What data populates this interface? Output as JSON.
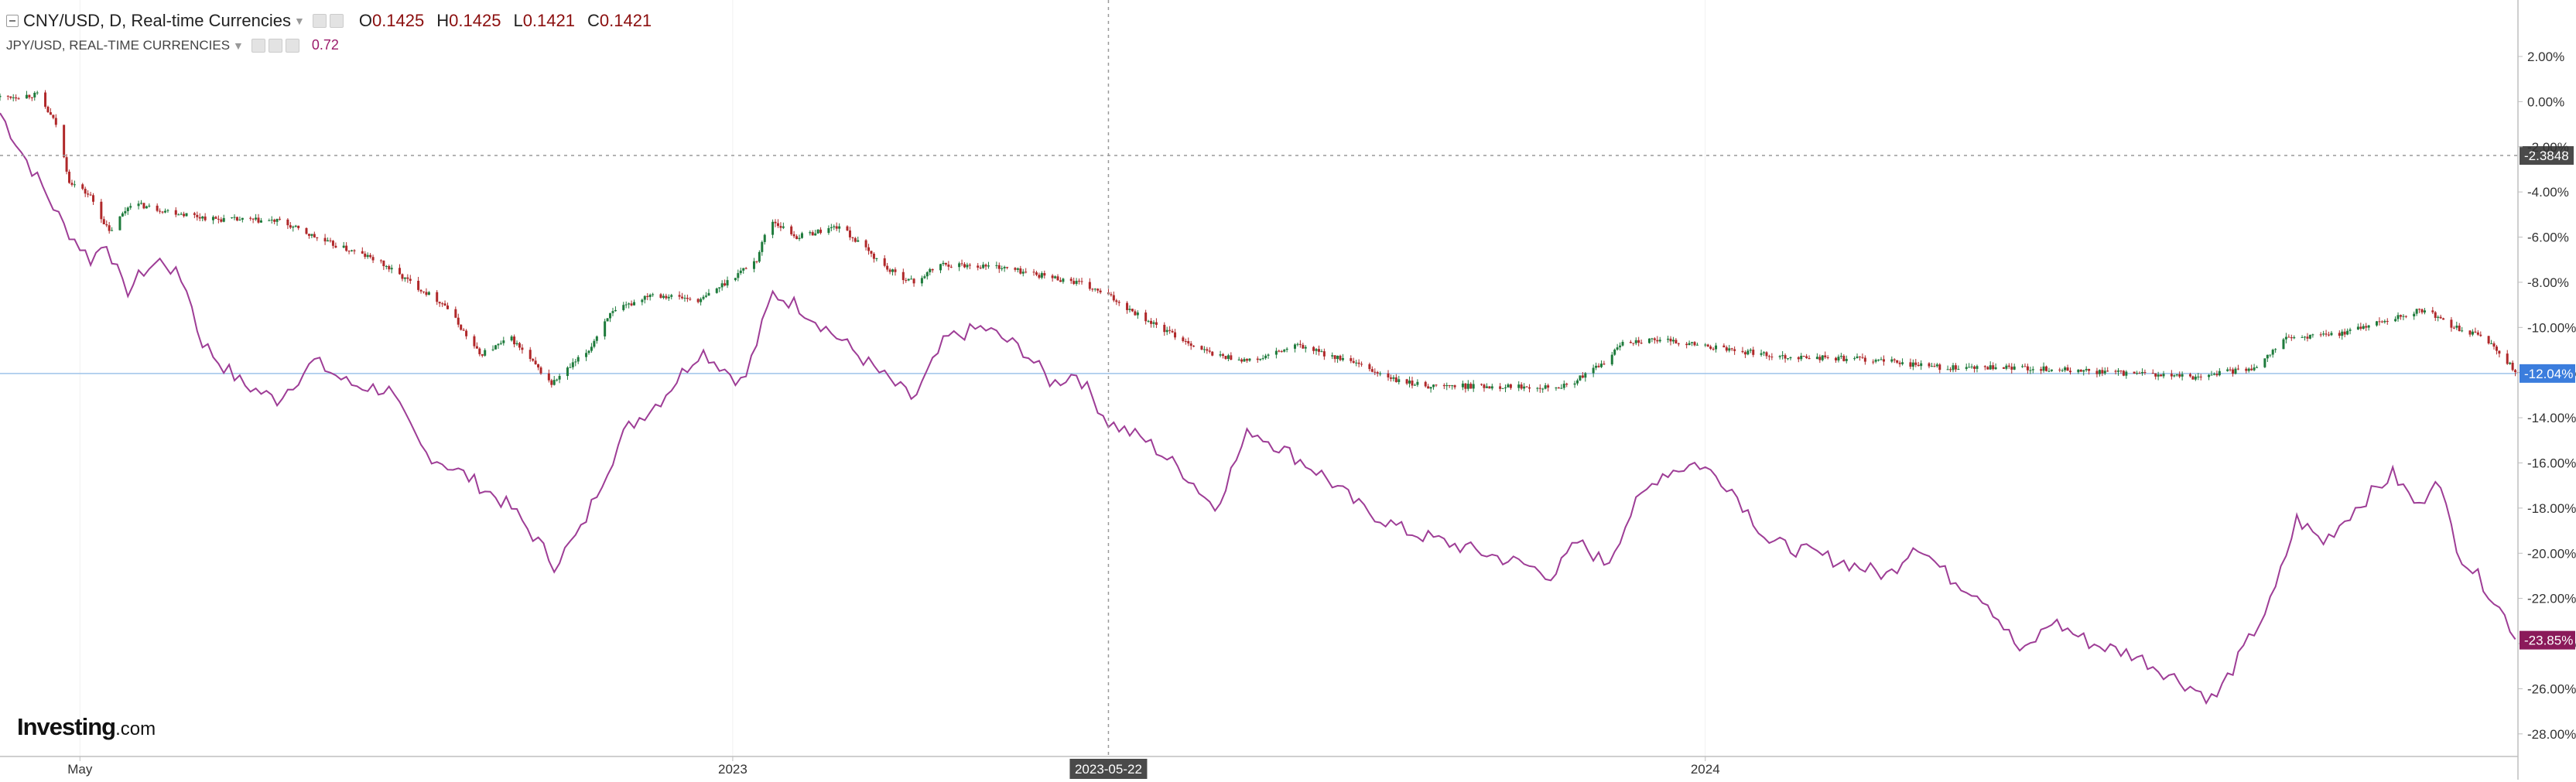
{
  "header": {
    "symbol": "CNY/USD, D, Real-time Currencies",
    "open_label": "O",
    "open": "0.1425",
    "high_label": "H",
    "high": "0.1425",
    "low_label": "L",
    "low": "0.1421",
    "close_label": "C",
    "close": "0.1421"
  },
  "overlay": {
    "symbol": "JPY/USD, REAL-TIME CURRENCIES",
    "value": "0.72"
  },
  "brand": {
    "name": "Investing",
    "domain": ".com"
  },
  "chart_data": {
    "type": "line",
    "y_axis": {
      "unit": "%",
      "range": [
        -29,
        4.5
      ],
      "ticks": [
        "2.00%",
        "0.00%",
        "-2.00%",
        "-4.00%",
        "-6.00%",
        "-8.00%",
        "-10.00%",
        "-12.00%",
        "-14.00%",
        "-16.00%",
        "-18.00%",
        "-20.00%",
        "-22.00%",
        "-24.00%",
        "-26.00%",
        "-28.00%"
      ],
      "tick_values": [
        2,
        0,
        -2,
        -4,
        -6,
        -8,
        -10,
        -12,
        -14,
        -16,
        -18,
        -20,
        -22,
        -24,
        -26,
        -28
      ]
    },
    "x_axis": {
      "range": [
        "2022-04-01",
        "2024-11-01"
      ],
      "labels": [
        {
          "text": "May",
          "date": "2022-05-01"
        },
        {
          "text": "2023",
          "date": "2023-01-01"
        },
        {
          "text": "2024",
          "date": "2024-01-01"
        }
      ]
    },
    "crosshair": {
      "date_label": "2023-05-22",
      "date": "2023-05-22",
      "value_label": "-2.3848",
      "value": -2.3848
    },
    "price_labels": [
      {
        "text": "-12.04%",
        "value": -12.04,
        "color": "#3b7ddd"
      },
      {
        "text": "-23.85%",
        "value": -23.85,
        "color": "#8b1a5a"
      }
    ],
    "series": [
      {
        "name": "CNY/USD",
        "style": "candlestick",
        "up_color": "#1e7b3c",
        "down_color": "#b0282a",
        "points": [
          {
            "x": "2022-04-01",
            "y": 0.2
          },
          {
            "x": "2022-04-15",
            "y": 0.3
          },
          {
            "x": "2022-04-22",
            "y": -1.0
          },
          {
            "x": "2022-04-27",
            "y": -3.5
          },
          {
            "x": "2022-05-05",
            "y": -4.2
          },
          {
            "x": "2022-05-12",
            "y": -5.8
          },
          {
            "x": "2022-05-20",
            "y": -4.5
          },
          {
            "x": "2022-06-01",
            "y": -4.8
          },
          {
            "x": "2022-06-20",
            "y": -5.2
          },
          {
            "x": "2022-07-15",
            "y": -5.3
          },
          {
            "x": "2022-08-01",
            "y": -6.2
          },
          {
            "x": "2022-08-20",
            "y": -7.0
          },
          {
            "x": "2022-09-15",
            "y": -9.0
          },
          {
            "x": "2022-09-28",
            "y": -11.2
          },
          {
            "x": "2022-10-10",
            "y": -10.5
          },
          {
            "x": "2022-10-25",
            "y": -12.5
          },
          {
            "x": "2022-11-08",
            "y": -11.0
          },
          {
            "x": "2022-11-15",
            "y": -9.5
          },
          {
            "x": "2022-12-01",
            "y": -8.5
          },
          {
            "x": "2022-12-20",
            "y": -8.8
          },
          {
            "x": "2023-01-10",
            "y": -7.0
          },
          {
            "x": "2023-01-15",
            "y": -5.2
          },
          {
            "x": "2023-01-25",
            "y": -6.0
          },
          {
            "x": "2023-02-10",
            "y": -5.5
          },
          {
            "x": "2023-03-01",
            "y": -7.5
          },
          {
            "x": "2023-03-10",
            "y": -8.0
          },
          {
            "x": "2023-03-20",
            "y": -7.2
          },
          {
            "x": "2023-04-10",
            "y": -7.3
          },
          {
            "x": "2023-05-10",
            "y": -8.0
          },
          {
            "x": "2023-05-22",
            "y": -8.6
          },
          {
            "x": "2023-06-10",
            "y": -10.0
          },
          {
            "x": "2023-06-30",
            "y": -11.2
          },
          {
            "x": "2023-07-15",
            "y": -11.5
          },
          {
            "x": "2023-08-01",
            "y": -10.8
          },
          {
            "x": "2023-08-20",
            "y": -11.5
          },
          {
            "x": "2023-09-08",
            "y": -12.4
          },
          {
            "x": "2023-09-20",
            "y": -12.6
          },
          {
            "x": "2023-10-20",
            "y": -12.6
          },
          {
            "x": "2023-11-10",
            "y": -12.6
          },
          {
            "x": "2023-11-25",
            "y": -11.5
          },
          {
            "x": "2023-12-01",
            "y": -10.6
          },
          {
            "x": "2023-12-20",
            "y": -10.6
          },
          {
            "x": "2024-01-10",
            "y": -11.0
          },
          {
            "x": "2024-02-01",
            "y": -11.3
          },
          {
            "x": "2024-03-01",
            "y": -11.4
          },
          {
            "x": "2024-04-01",
            "y": -11.8
          },
          {
            "x": "2024-05-01",
            "y": -11.8
          },
          {
            "x": "2024-06-01",
            "y": -12.0
          },
          {
            "x": "2024-07-01",
            "y": -12.2
          },
          {
            "x": "2024-07-25",
            "y": -11.8
          },
          {
            "x": "2024-08-05",
            "y": -10.5
          },
          {
            "x": "2024-08-25",
            "y": -10.3
          },
          {
            "x": "2024-09-15",
            "y": -9.6
          },
          {
            "x": "2024-09-27",
            "y": -9.2
          },
          {
            "x": "2024-10-08",
            "y": -10.0
          },
          {
            "x": "2024-10-20",
            "y": -10.5
          },
          {
            "x": "2024-10-28",
            "y": -11.5
          },
          {
            "x": "2024-11-01",
            "y": -12.04
          }
        ]
      },
      {
        "name": "JPY/USD",
        "style": "line",
        "color": "#9e3d96",
        "points": [
          {
            "x": "2022-04-01",
            "y": -0.5
          },
          {
            "x": "2022-04-08",
            "y": -2.0
          },
          {
            "x": "2022-04-18",
            "y": -4.0
          },
          {
            "x": "2022-04-25",
            "y": -5.5
          },
          {
            "x": "2022-05-05",
            "y": -7.0
          },
          {
            "x": "2022-05-11",
            "y": -6.2
          },
          {
            "x": "2022-05-18",
            "y": -8.5
          },
          {
            "x": "2022-05-25",
            "y": -7.5
          },
          {
            "x": "2022-06-01",
            "y": -7.0
          },
          {
            "x": "2022-06-10",
            "y": -8.2
          },
          {
            "x": "2022-06-15",
            "y": -10.5
          },
          {
            "x": "2022-06-22",
            "y": -11.5
          },
          {
            "x": "2022-07-01",
            "y": -12.5
          },
          {
            "x": "2022-07-14",
            "y": -13.2
          },
          {
            "x": "2022-07-28",
            "y": -11.5
          },
          {
            "x": "2022-08-10",
            "y": -12.5
          },
          {
            "x": "2022-08-25",
            "y": -12.8
          },
          {
            "x": "2022-09-07",
            "y": -15.5
          },
          {
            "x": "2022-09-22",
            "y": -16.5
          },
          {
            "x": "2022-10-10",
            "y": -18.0
          },
          {
            "x": "2022-10-20",
            "y": -19.5
          },
          {
            "x": "2022-10-26",
            "y": -20.5
          },
          {
            "x": "2022-11-05",
            "y": -19.0
          },
          {
            "x": "2022-11-12",
            "y": -17.0
          },
          {
            "x": "2022-11-22",
            "y": -14.5
          },
          {
            "x": "2022-12-05",
            "y": -13.2
          },
          {
            "x": "2022-12-20",
            "y": -11.0
          },
          {
            "x": "2023-01-05",
            "y": -12.5
          },
          {
            "x": "2023-01-16",
            "y": -8.5
          },
          {
            "x": "2023-01-25",
            "y": -9.0
          },
          {
            "x": "2023-02-10",
            "y": -10.5
          },
          {
            "x": "2023-02-25",
            "y": -12.0
          },
          {
            "x": "2023-03-10",
            "y": -13.2
          },
          {
            "x": "2023-03-22",
            "y": -10.5
          },
          {
            "x": "2023-04-05",
            "y": -10.0
          },
          {
            "x": "2023-04-20",
            "y": -11.0
          },
          {
            "x": "2023-05-01",
            "y": -12.5
          },
          {
            "x": "2023-05-10",
            "y": -12.0
          },
          {
            "x": "2023-05-22",
            "y": -14.2
          },
          {
            "x": "2023-06-05",
            "y": -15.0
          },
          {
            "x": "2023-06-20",
            "y": -16.5
          },
          {
            "x": "2023-07-01",
            "y": -18.0
          },
          {
            "x": "2023-07-14",
            "y": -14.5
          },
          {
            "x": "2023-07-28",
            "y": -15.5
          },
          {
            "x": "2023-08-10",
            "y": -16.5
          },
          {
            "x": "2023-08-25",
            "y": -18.0
          },
          {
            "x": "2023-09-10",
            "y": -19.0
          },
          {
            "x": "2023-09-25",
            "y": -19.5
          },
          {
            "x": "2023-10-10",
            "y": -20.0
          },
          {
            "x": "2023-10-25",
            "y": -20.5
          },
          {
            "x": "2023-11-05",
            "y": -21.0
          },
          {
            "x": "2023-11-14",
            "y": -19.5
          },
          {
            "x": "2023-11-25",
            "y": -20.5
          },
          {
            "x": "2023-12-05",
            "y": -18.0
          },
          {
            "x": "2023-12-15",
            "y": -16.5
          },
          {
            "x": "2023-12-29",
            "y": -16.0
          },
          {
            "x": "2024-01-10",
            "y": -17.0
          },
          {
            "x": "2024-01-25",
            "y": -19.5
          },
          {
            "x": "2024-02-10",
            "y": -20.0
          },
          {
            "x": "2024-02-25",
            "y": -20.5
          },
          {
            "x": "2024-03-10",
            "y": -21.0
          },
          {
            "x": "2024-03-20",
            "y": -19.5
          },
          {
            "x": "2024-04-01",
            "y": -21.0
          },
          {
            "x": "2024-04-15",
            "y": -22.0
          },
          {
            "x": "2024-04-29",
            "y": -24.5
          },
          {
            "x": "2024-05-10",
            "y": -23.0
          },
          {
            "x": "2024-05-25",
            "y": -24.0
          },
          {
            "x": "2024-06-10",
            "y": -24.5
          },
          {
            "x": "2024-06-25",
            "y": -25.5
          },
          {
            "x": "2024-07-10",
            "y": -26.5
          },
          {
            "x": "2024-07-20",
            "y": -24.5
          },
          {
            "x": "2024-08-01",
            "y": -22.0
          },
          {
            "x": "2024-08-10",
            "y": -18.5
          },
          {
            "x": "2024-08-20",
            "y": -19.5
          },
          {
            "x": "2024-09-01",
            "y": -18.0
          },
          {
            "x": "2024-09-15",
            "y": -16.5
          },
          {
            "x": "2024-09-25",
            "y": -18.0
          },
          {
            "x": "2024-10-01",
            "y": -16.5
          },
          {
            "x": "2024-10-10",
            "y": -20.0
          },
          {
            "x": "2024-10-20",
            "y": -21.5
          },
          {
            "x": "2024-10-28",
            "y": -23.0
          },
          {
            "x": "2024-11-01",
            "y": -23.85
          }
        ]
      }
    ]
  }
}
